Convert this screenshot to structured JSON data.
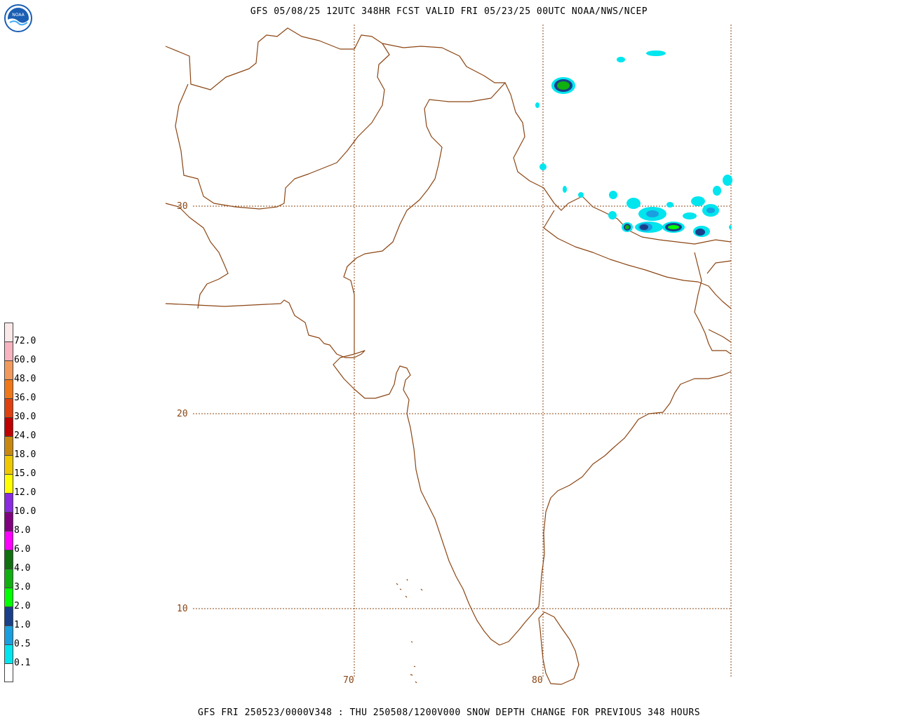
{
  "header": {
    "title": "GFS 05/08/25 12UTC 348HR FCST VALID FRI 05/23/25 00UTC NOAA/NWS/NCEP",
    "logo_text": "NOAA",
    "logo_icon": "noaa-logo-icon"
  },
  "footer": {
    "caption": "GFS FRI 250523/0000V348 : THU 250508/1200V000 SNOW DEPTH CHANGE FOR PREVIOUS 348 HOURS"
  },
  "map": {
    "region": "South Asia",
    "latitude_labels": [
      "30",
      "20",
      "10"
    ],
    "longitude_labels": [
      "70",
      "80"
    ],
    "coast_color": "#8b4513",
    "grid_color": "#8b4513"
  },
  "colorbar": {
    "labels": [
      "72.0",
      "60.0",
      "48.0",
      "36.0",
      "30.0",
      "24.0",
      "18.0",
      "15.0",
      "12.0",
      "10.0",
      "8.0",
      "6.0",
      "4.0",
      "3.0",
      "2.0",
      "1.0",
      "0.5",
      "0.1"
    ],
    "colors": [
      "#fbe9e9",
      "#f8b4c0",
      "#f29a5c",
      "#f07818",
      "#e04010",
      "#c00000",
      "#c88810",
      "#f0c800",
      "#ffff00",
      "#8a2be2",
      "#800080",
      "#ff00ff",
      "#107010",
      "#10b010",
      "#00ff00",
      "#1a3f8a",
      "#1a9fe0",
      "#00e5ee",
      "#ffffff"
    ]
  }
}
